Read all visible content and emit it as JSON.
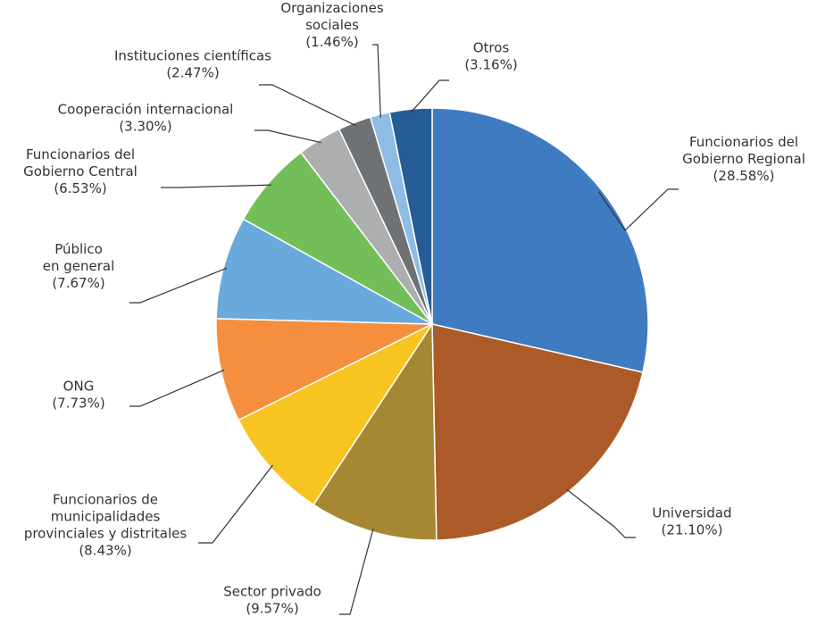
{
  "chart_data": {
    "type": "pie",
    "title": "",
    "legend": "none",
    "slices": [
      {
        "label": [
          "Funcionarios del",
          "Gobierno Regional"
        ],
        "value": 28.58,
        "pct_text": "(28.58%)",
        "color": "#3F7BC1"
      },
      {
        "label": [
          "Universidad"
        ],
        "value": 21.1,
        "pct_text": "(21.10%)",
        "color": "#AC5B28"
      },
      {
        "label": [
          "Sector privado"
        ],
        "value": 9.57,
        "pct_text": "(9.57%)",
        "color": "#A68833"
      },
      {
        "label": [
          "Funcionarios de",
          "municipalidades",
          "provinciales y distritales"
        ],
        "value": 8.43,
        "pct_text": "(8.43%)",
        "color": "#F7C420"
      },
      {
        "label": [
          "ONG"
        ],
        "value": 7.73,
        "pct_text": "(7.73%)",
        "color": "#F58F3D"
      },
      {
        "label": [
          "Público",
          "en general"
        ],
        "value": 7.67,
        "pct_text": "(7.67%)",
        "color": "#69A9DC"
      },
      {
        "label": [
          "Funcionarios del",
          "Gobierno Central"
        ],
        "value": 6.53,
        "pct_text": "(6.53%)",
        "color": "#73BE59"
      },
      {
        "label": [
          "Cooperación internacional"
        ],
        "value": 3.3,
        "pct_text": "(3.30%)",
        "color": "#ACAEB0"
      },
      {
        "label": [
          "Instituciones científicas"
        ],
        "value": 2.47,
        "pct_text": "(2.47%)",
        "color": "#6F7275"
      },
      {
        "label": [
          "Organizaciones",
          "sociales"
        ],
        "value": 1.46,
        "pct_text": "(1.46%)",
        "color": "#8DBCE5"
      },
      {
        "label": [
          "Otros"
        ],
        "value": 3.16,
        "pct_text": "(3.16%)",
        "color": "#265C96"
      }
    ]
  }
}
